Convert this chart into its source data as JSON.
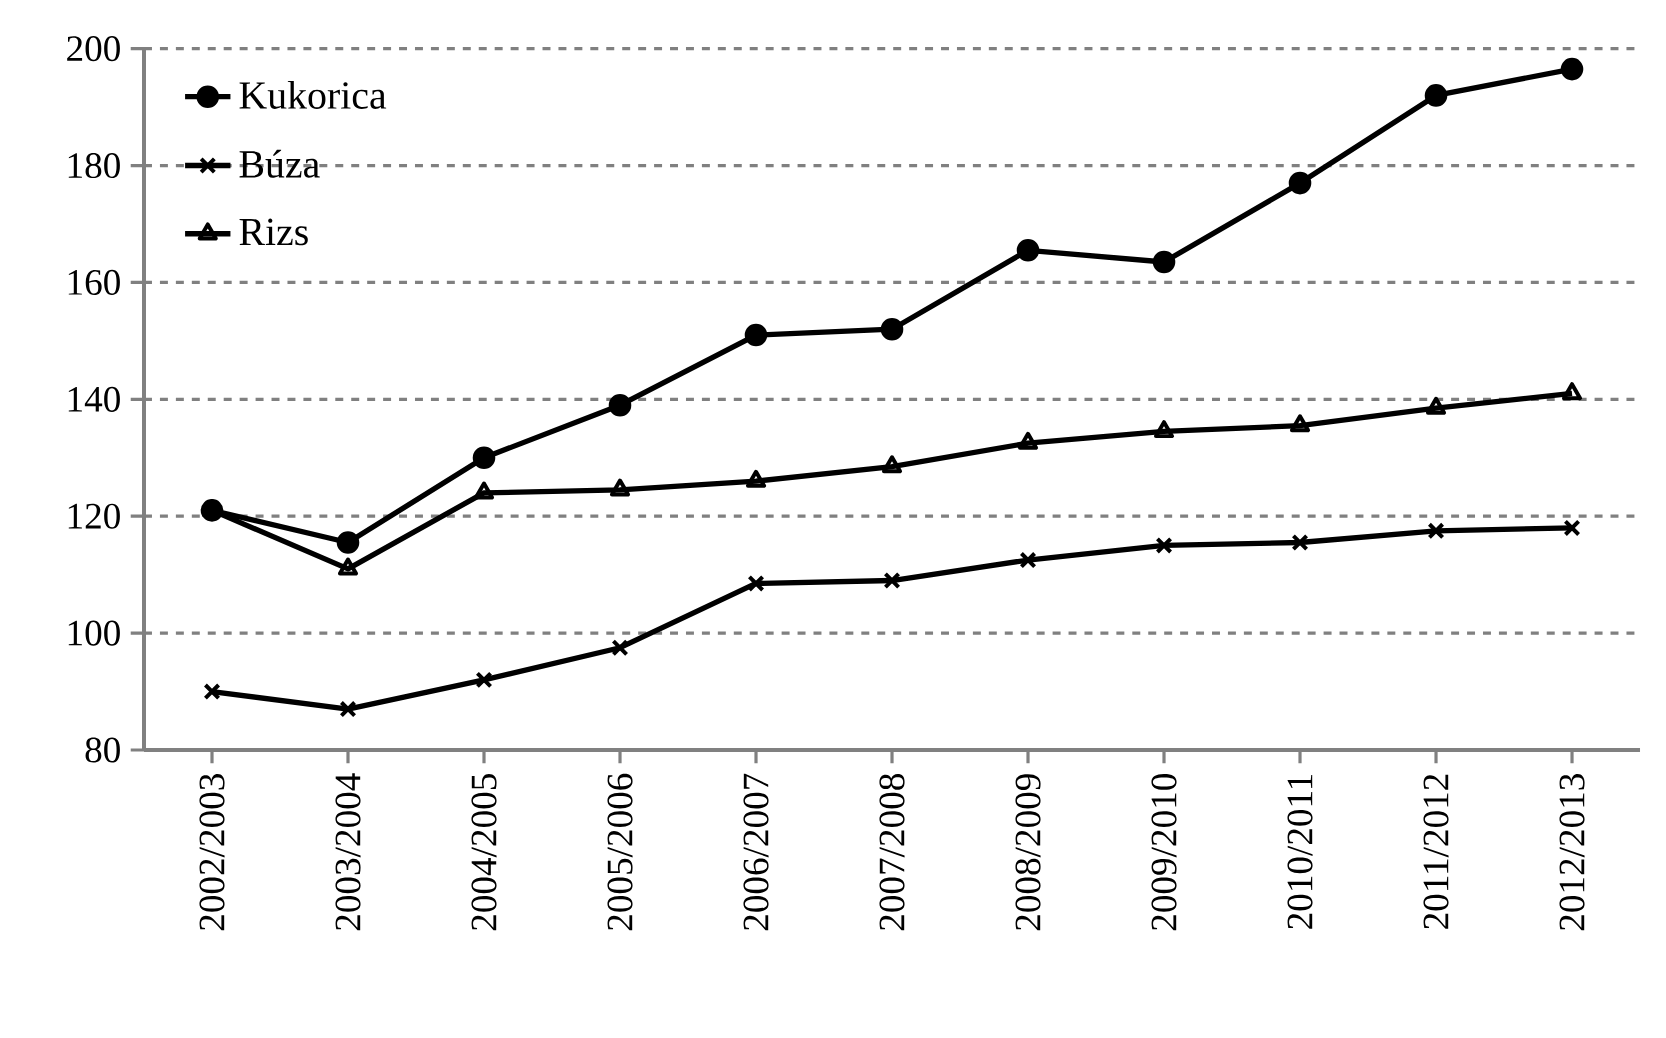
{
  "chart_data": {
    "type": "line",
    "categories": [
      "2002/2003",
      "2003/2004",
      "2004/2005",
      "2005/2006",
      "2006/2007",
      "2007/2008",
      "2008/2009",
      "2009/2010",
      "2010/2011",
      "2011/2012",
      "2012/2013"
    ],
    "series": [
      {
        "name": "Kukorica",
        "color": "#000000",
        "marker": "circle",
        "values": [
          121,
          115.5,
          130,
          139,
          151,
          152,
          165.5,
          163.5,
          177,
          192,
          196.5
        ]
      },
      {
        "name": "Búza",
        "color": "#000000",
        "marker": "cross",
        "values": [
          90,
          87,
          92,
          97.5,
          108.5,
          109,
          112.5,
          115,
          115.5,
          117.5,
          118
        ]
      },
      {
        "name": "Rizs",
        "color": "#000000",
        "marker": "triangle",
        "values": [
          121,
          111,
          124,
          124.5,
          126,
          128.5,
          132.5,
          134.5,
          135.5,
          138.5,
          141
        ]
      }
    ],
    "ylim": [
      80,
      200
    ],
    "yticks": [
      80,
      100,
      120,
      140,
      160,
      180,
      200
    ],
    "grid": "y",
    "legend": "top left",
    "line_style": "solid"
  }
}
